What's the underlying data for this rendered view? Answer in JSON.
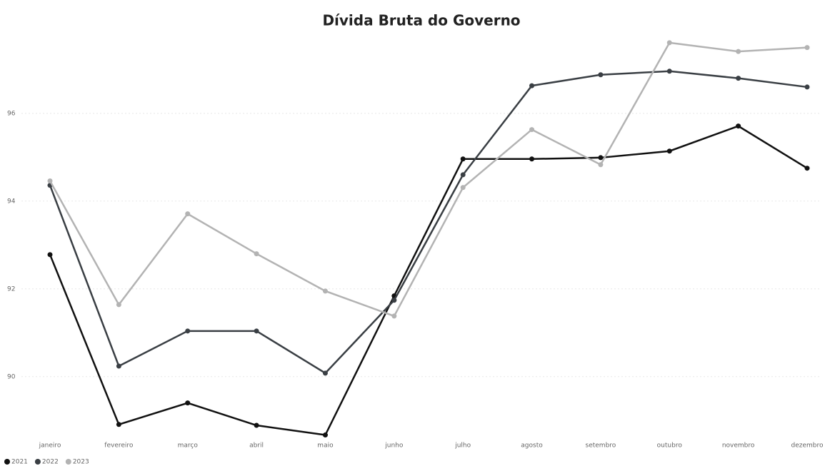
{
  "chart_data": {
    "type": "line",
    "title": "Dívida Bruta do Governo",
    "categories": [
      "janeiro",
      "fevereiro",
      "março",
      "abril",
      "maio",
      "junho",
      "julho",
      "agosto",
      "setembro",
      "outubro",
      "novembro",
      "dezembro"
    ],
    "series": [
      {
        "name": "2021",
        "color": "#111111",
        "values": [
          92.78,
          88.91,
          89.4,
          88.89,
          88.67,
          91.84,
          94.96,
          94.96,
          94.99,
          95.14,
          95.71,
          94.75
        ]
      },
      {
        "name": "2022",
        "color": "#3a3f44",
        "values": [
          94.36,
          90.24,
          91.04,
          91.04,
          90.08,
          91.74,
          94.6,
          96.63,
          96.88,
          96.96,
          96.8,
          96.6
        ]
      },
      {
        "name": "2023",
        "color": "#b3b3b3",
        "values": [
          94.46,
          91.64,
          93.71,
          92.8,
          91.95,
          91.38,
          94.31,
          95.63,
          94.83,
          97.61,
          97.41,
          97.5
        ]
      }
    ],
    "ylim": [
      88.5,
      97.9
    ],
    "yticks": [
      90,
      92,
      94,
      96
    ],
    "grid": true,
    "legend": "bottom-left"
  }
}
